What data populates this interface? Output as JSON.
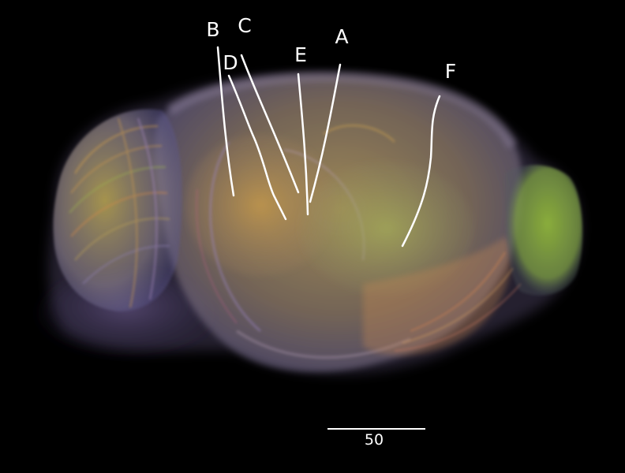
{
  "labels": [
    {
      "id": "B",
      "text": "B"
    },
    {
      "id": "C",
      "text": "C"
    },
    {
      "id": "D",
      "text": "D"
    },
    {
      "id": "E",
      "text": "E"
    },
    {
      "id": "A",
      "text": "A"
    },
    {
      "id": "F",
      "text": "F"
    }
  ],
  "scale_bar": {
    "label": "50"
  },
  "colors": {
    "background": "#000000",
    "annotation": "#ffffff",
    "tissue_orange": "#c9963c",
    "tissue_purple": "#7f6aa8",
    "tissue_green": "#9bc04a"
  }
}
